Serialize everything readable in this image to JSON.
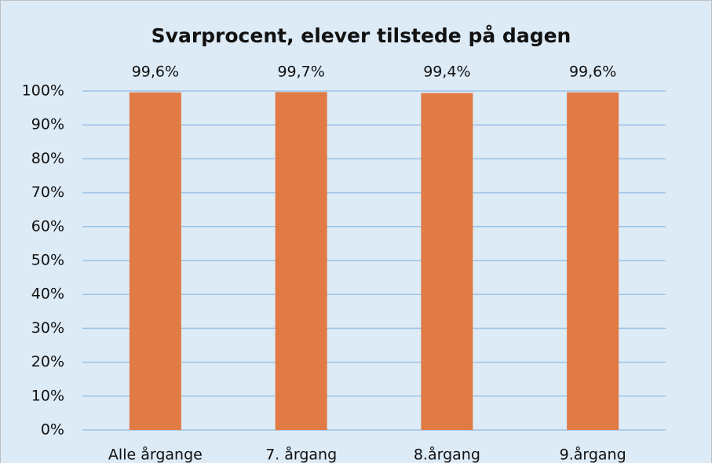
{
  "chart_data": {
    "type": "bar",
    "title": "Svarprocent, elever tilstede på dagen",
    "categories": [
      "Alle årgange",
      "7. årgang",
      "8.årgang",
      "9.årgang"
    ],
    "values": [
      99.6,
      99.7,
      99.4,
      99.6
    ],
    "value_labels": [
      "99,6%",
      "99,7%",
      "99,4%",
      "99,6%"
    ],
    "color": "#e07b45",
    "ylim": [
      0,
      100
    ],
    "yticks": [
      {
        "value": 0,
        "label": "0%"
      },
      {
        "value": 10,
        "label": "10%"
      },
      {
        "value": 20,
        "label": "20%"
      },
      {
        "value": 30,
        "label": "30%"
      },
      {
        "value": 40,
        "label": "40%"
      },
      {
        "value": 50,
        "label": "50%"
      },
      {
        "value": 60,
        "label": "60%"
      },
      {
        "value": 70,
        "label": "70%"
      },
      {
        "value": 80,
        "label": "80%"
      },
      {
        "value": 90,
        "label": "90%"
      },
      {
        "value": 100,
        "label": "100%"
      }
    ],
    "grid": true
  }
}
